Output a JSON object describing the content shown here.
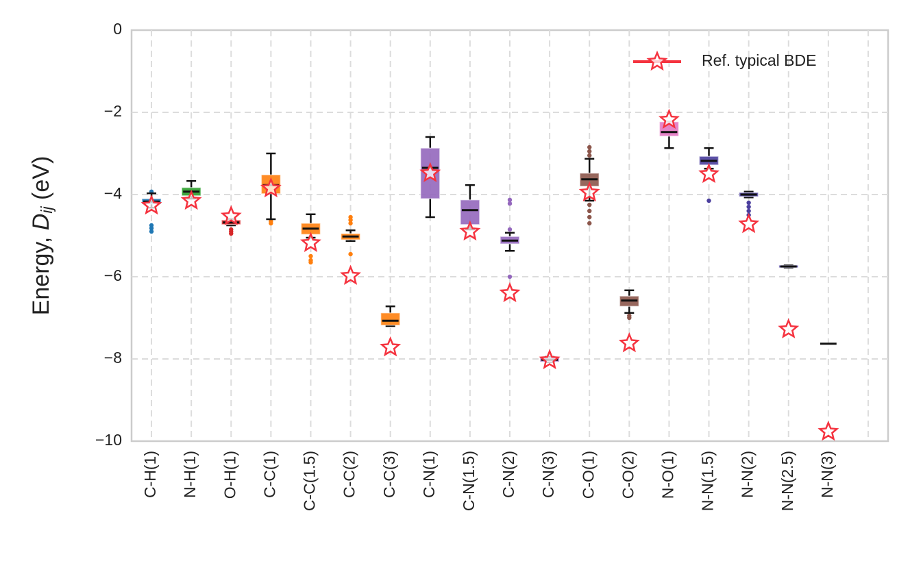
{
  "chart_data": {
    "type": "box",
    "ylabel": [
      "Energy, ",
      "D",
      "ij",
      " (eV)"
    ],
    "categories": [
      "C-H(1)",
      "N-H(1)",
      "O-H(1)",
      "C-C(1)",
      "C-C(1.5)",
      "C-C(2)",
      "C-C(3)",
      "C-N(1)",
      "C-N(1.5)",
      "C-N(2)",
      "C-N(3)",
      "C-O(1)",
      "C-O(2)",
      "N-O(1)",
      "N-N(1.5)",
      "N-N(2)",
      "N-N(2.5)",
      "N-N(3)",
      null
    ],
    "colors": [
      "#1f77b4",
      "#2ca02c",
      "#d62728",
      "#ff7f0e",
      "#ff7f0e",
      "#ff7f0e",
      "#ff7f0e",
      "#9467bd",
      "#9467bd",
      "#9467bd",
      "#9467bd",
      "#8c564b",
      "#8c564b",
      "#e377c2",
      "#4b3f9e",
      "#4b3f9e",
      "#4b3f9e",
      "#4b3f9e",
      null
    ],
    "whisker_high": [
      -3.97,
      -3.67,
      -4.6,
      -3.0,
      -4.48,
      -4.87,
      -6.72,
      -2.6,
      -3.77,
      -4.93,
      -7.95,
      -3.13,
      -6.33,
      -2.23,
      -2.87,
      -3.93,
      -5.72,
      null,
      null
    ],
    "q3": [
      -4.1,
      -3.83,
      -4.62,
      -3.52,
      -4.7,
      -4.95,
      -6.88,
      -2.87,
      -4.13,
      -5.02,
      -7.97,
      -3.48,
      -6.47,
      -2.23,
      -3.07,
      -3.95,
      -5.72,
      null,
      null
    ],
    "median": [
      -4.17,
      -3.93,
      -4.68,
      -3.77,
      -4.83,
      -5.02,
      -7.07,
      -3.35,
      -4.38,
      -5.12,
      -8.02,
      -3.63,
      -6.58,
      -2.48,
      -3.18,
      -4.0,
      -5.75,
      -7.63,
      null
    ],
    "q1": [
      -4.23,
      -4.03,
      -4.73,
      -3.98,
      -4.97,
      -5.1,
      -7.18,
      -4.1,
      -4.73,
      -5.2,
      -8.07,
      -3.8,
      -6.72,
      -2.58,
      -3.28,
      -4.05,
      -5.78,
      null,
      null
    ],
    "whisker_low": [
      -4.32,
      -4.1,
      -4.75,
      -4.6,
      -5.05,
      -5.13,
      -7.2,
      -4.55,
      -4.85,
      -5.37,
      -8.08,
      -4.15,
      -6.88,
      -2.87,
      -3.37,
      -4.07,
      -5.78,
      null,
      null
    ],
    "outliers": [
      [
        -3.93,
        -4.75,
        -4.82,
        -4.9
      ],
      [],
      [
        -4.85,
        -4.9,
        -4.95
      ],
      [
        -4.65,
        -4.7
      ],
      [
        -5.5,
        -5.6,
        -5.65
      ],
      [
        -4.55,
        -4.62,
        -4.7,
        -5.45
      ],
      [],
      [],
      [],
      [
        -4.13,
        -4.22,
        -4.85,
        -6.0
      ],
      [],
      [
        -2.85,
        -2.95,
        -3.05,
        -4.25,
        -4.4,
        -4.55,
        -4.7
      ],
      [
        -6.95,
        -7.0
      ],
      [],
      [
        -4.15
      ],
      [
        -4.2,
        -4.3,
        -4.4,
        -4.5
      ],
      [],
      [],
      []
    ],
    "reference": {
      "name": "Ref. typical BDE",
      "color": "#f5333f",
      "values": [
        -4.27,
        -4.15,
        -4.53,
        -3.85,
        -5.18,
        -5.98,
        -7.72,
        -3.48,
        -4.9,
        -6.4,
        -8.03,
        -3.95,
        -7.62,
        -2.18,
        -3.5,
        -4.72,
        -7.28,
        -9.77,
        null
      ]
    },
    "legend": "upper right",
    "ylim": [
      -10,
      0
    ],
    "yticks": [
      {
        "value": -10,
        "label": "−10"
      },
      {
        "value": -8,
        "label": "−8"
      },
      {
        "value": -6,
        "label": "−6"
      },
      {
        "value": -4,
        "label": "−4"
      },
      {
        "value": -2,
        "label": "−2"
      },
      0
    ],
    "grid": true
  }
}
